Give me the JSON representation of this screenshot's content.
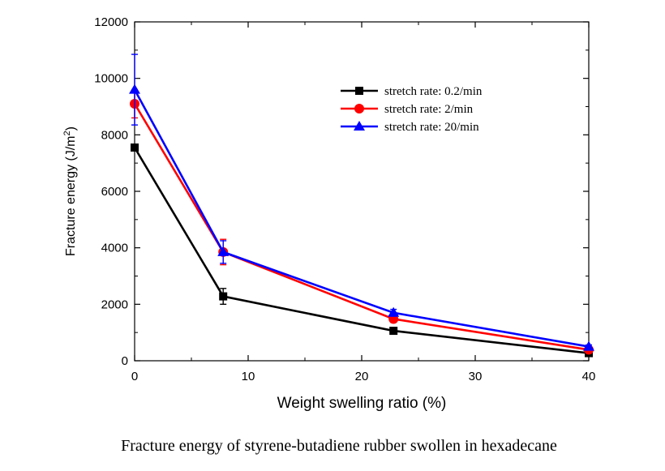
{
  "chart_data": {
    "type": "line",
    "xlabel": "Weight swelling ratio (%)",
    "ylabel_main": "Fracture energy (J/m",
    "ylabel_sup": "2",
    "ylabel_close": ")",
    "caption": "Fracture energy of styrene-butadiene rubber swollen in hexadecane",
    "xlim": [
      0,
      40
    ],
    "ylim": [
      0,
      12000
    ],
    "xticks": [
      0,
      10,
      20,
      30,
      40
    ],
    "yticks": [
      0,
      2000,
      4000,
      6000,
      8000,
      10000,
      12000
    ],
    "grid": false,
    "legend_position": "top-right",
    "series": [
      {
        "name": "stretch rate: 0.2/min",
        "color": "#000000",
        "marker": "square",
        "x": [
          0,
          7.8,
          22.8,
          40
        ],
        "y": [
          7550,
          2280,
          1060,
          270
        ],
        "err": [
          0,
          280,
          80,
          60
        ]
      },
      {
        "name": "stretch rate: 2/min",
        "color": "#ff0000",
        "marker": "circle",
        "x": [
          0,
          7.8,
          22.8,
          40
        ],
        "y": [
          9100,
          3850,
          1480,
          390
        ],
        "err": [
          500,
          450,
          120,
          60
        ]
      },
      {
        "name": "stretch rate: 20/min",
        "color": "#0000ff",
        "marker": "triangle",
        "x": [
          0,
          7.8,
          22.8,
          40
        ],
        "y": [
          9600,
          3850,
          1700,
          500
        ],
        "err": [
          1250,
          400,
          120,
          60
        ]
      }
    ]
  }
}
